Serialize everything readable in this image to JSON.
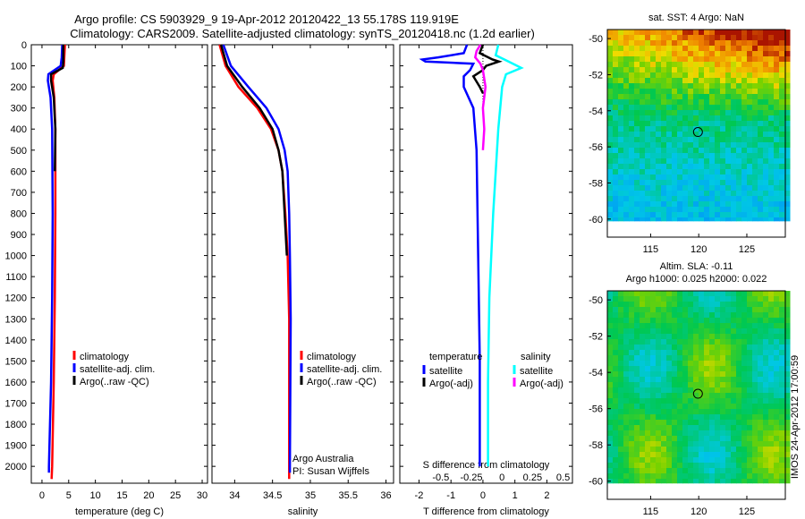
{
  "header": {
    "line1": "Argo profile: CS 5903929_9 19-Apr-2012 20120422_13 55.178S 119.919E",
    "line2": "Climatology: CARS2009. Satellite-adjusted climatology: synTS_20120418.nc (1.2d earlier)"
  },
  "colors": {
    "climatology": "#ff0000",
    "satellite": "#0000ff",
    "argo": "#000000",
    "argo_salinity": "#ff00ff",
    "satellite_salinity": "#00ffff"
  },
  "depth_ticks": [
    "0",
    "100",
    "200",
    "300",
    "400",
    "500",
    "600",
    "700",
    "800",
    "900",
    "1000",
    "1100",
    "1200",
    "1300",
    "1400",
    "1500",
    "1600",
    "1700",
    "1800",
    "1900",
    "2000"
  ],
  "chart_data": [
    {
      "type": "line",
      "id": "temperature",
      "xlabel": "temperature (deg C)",
      "ylabel": "",
      "xlim": [
        -2,
        31
      ],
      "ylim": [
        2080,
        0
      ],
      "xticks": [
        "0",
        "5",
        "10",
        "15",
        "20",
        "25",
        "30"
      ],
      "xtick_values": [
        0,
        5,
        10,
        15,
        20,
        25,
        30
      ],
      "legend": {
        "position": "middle",
        "entries": [
          "climatology",
          "satellite-adj. clim.",
          "Argo(..raw -QC)"
        ]
      },
      "series": [
        {
          "name": "climatology",
          "color": "#ff0000",
          "points": [
            [
              4.3,
              0
            ],
            [
              4.2,
              50
            ],
            [
              4.1,
              100
            ],
            [
              2.2,
              140
            ],
            [
              2.0,
              170
            ],
            [
              2.3,
              250
            ],
            [
              2.5,
              400
            ],
            [
              2.5,
              800
            ],
            [
              2.4,
              1200
            ],
            [
              2.2,
              1600
            ],
            [
              1.9,
              2000
            ],
            [
              1.8,
              2060
            ]
          ]
        },
        {
          "name": "satellite-adj. clim.",
          "color": "#0000ff",
          "points": [
            [
              3.8,
              0
            ],
            [
              3.7,
              60
            ],
            [
              3.5,
              100
            ],
            [
              1.2,
              140
            ],
            [
              1.1,
              170
            ],
            [
              1.6,
              250
            ],
            [
              1.9,
              400
            ],
            [
              2.0,
              800
            ],
            [
              1.9,
              1200
            ],
            [
              1.7,
              1600
            ],
            [
              1.3,
              2000
            ],
            [
              1.3,
              2030
            ]
          ]
        },
        {
          "name": "Argo(..raw -QC)",
          "color": "#000000",
          "points": [
            [
              4.0,
              0
            ],
            [
              4.0,
              80
            ],
            [
              3.9,
              110
            ],
            [
              1.7,
              140
            ],
            [
              1.7,
              170
            ],
            [
              2.2,
              250
            ],
            [
              2.5,
              400
            ],
            [
              2.4,
              600
            ]
          ]
        }
      ]
    },
    {
      "type": "line",
      "id": "salinity",
      "xlabel": "salinity",
      "ylabel": "",
      "xlim": [
        33.7,
        36.1
      ],
      "ylim": [
        2080,
        0
      ],
      "xticks": [
        "34",
        "34.5",
        "35",
        "35.5",
        "36"
      ],
      "xtick_values": [
        34,
        34.5,
        35,
        35.5,
        36
      ],
      "legend": {
        "position": "middle",
        "entries": [
          "climatology",
          "satellite-adj. clim.",
          "Argo(..raw -QC)"
        ]
      },
      "annotation": [
        "Argo Australia",
        "PI: Susan Wijffels"
      ],
      "series": [
        {
          "name": "climatology",
          "color": "#ff0000",
          "points": [
            [
              33.8,
              0
            ],
            [
              33.88,
              100
            ],
            [
              34.05,
              200
            ],
            [
              34.3,
              300
            ],
            [
              34.48,
              400
            ],
            [
              34.58,
              500
            ],
            [
              34.63,
              600
            ],
            [
              34.67,
              800
            ],
            [
              34.7,
              1000
            ],
            [
              34.72,
              1300
            ],
            [
              34.72,
              2000
            ],
            [
              34.72,
              2060
            ]
          ]
        },
        {
          "name": "satellite-adj. clim.",
          "color": "#0000ff",
          "points": [
            [
              33.85,
              0
            ],
            [
              33.95,
              100
            ],
            [
              34.18,
              200
            ],
            [
              34.42,
              300
            ],
            [
              34.58,
              400
            ],
            [
              34.66,
              500
            ],
            [
              34.7,
              600
            ],
            [
              34.72,
              800
            ],
            [
              34.73,
              1000
            ],
            [
              34.74,
              1300
            ],
            [
              34.73,
              2000
            ],
            [
              34.73,
              2030
            ]
          ]
        },
        {
          "name": "Argo(..raw -QC)",
          "color": "#000000",
          "points": [
            [
              33.82,
              0
            ],
            [
              33.9,
              100
            ],
            [
              34.1,
              200
            ],
            [
              34.33,
              300
            ],
            [
              34.5,
              400
            ],
            [
              34.58,
              500
            ],
            [
              34.63,
              600
            ],
            [
              34.66,
              800
            ],
            [
              34.69,
              1000
            ]
          ]
        }
      ]
    },
    {
      "type": "line",
      "id": "difference",
      "xlabel": "T difference from climatology",
      "xlabel_top": "S difference from climatology",
      "xlim": [
        -2.6,
        2.8
      ],
      "ylim": [
        2080,
        0
      ],
      "xticks": [
        "-2",
        "-1",
        "0",
        "1",
        "2"
      ],
      "xtick_values": [
        -2,
        -1,
        0,
        1,
        2
      ],
      "top_ticks": [
        "-0.5",
        "-0.25",
        "0",
        "0.25",
        "0.5"
      ],
      "legend": {
        "position": "middle",
        "titles": [
          "temperature",
          "salinity"
        ],
        "entries": [
          "satellite",
          "Argo(-adj)",
          "satellite",
          "Argo(-adj)"
        ]
      },
      "series": [
        {
          "name": "satellite",
          "quantity": "temperature",
          "color": "#0000ff",
          "points": [
            [
              -0.5,
              0
            ],
            [
              -0.6,
              40
            ],
            [
              -1.4,
              60
            ],
            [
              -1.9,
              70
            ],
            [
              -1.8,
              80
            ],
            [
              -0.3,
              90
            ],
            [
              -0.4,
              120
            ],
            [
              -0.6,
              150
            ],
            [
              -0.6,
              200
            ],
            [
              -0.3,
              300
            ],
            [
              -0.2,
              500
            ],
            [
              -0.15,
              1000
            ],
            [
              -0.1,
              1500
            ],
            [
              -0.1,
              2000
            ]
          ]
        },
        {
          "name": "Argo(-adj)",
          "quantity": "temperature",
          "color": "#000000",
          "points": [
            [
              0.0,
              0
            ],
            [
              -0.05,
              20
            ],
            [
              -0.1,
              40
            ],
            [
              0.3,
              70
            ],
            [
              0.5,
              80
            ],
            [
              0.1,
              100
            ],
            [
              0.0,
              120
            ],
            [
              -0.3,
              150
            ],
            [
              -0.1,
              200
            ],
            [
              0.0,
              230
            ]
          ]
        },
        {
          "name": "satellite",
          "quantity": "salinity",
          "color": "#00ffff",
          "points": [
            [
              0.12,
              0
            ],
            [
              0.1,
              50
            ],
            [
              0.2,
              80
            ],
            [
              0.3,
              110
            ],
            [
              0.18,
              140
            ],
            [
              0.15,
              200
            ],
            [
              0.12,
              400
            ],
            [
              0.08,
              800
            ],
            [
              0.05,
              1200
            ],
            [
              0.04,
              1600
            ],
            [
              0.04,
              2000
            ]
          ]
        },
        {
          "name": "Argo(-adj)",
          "quantity": "salinity",
          "color": "#ff00ff",
          "points": [
            [
              -0.02,
              0
            ],
            [
              -0.05,
              30
            ],
            [
              -0.06,
              60
            ],
            [
              -0.02,
              90
            ],
            [
              0.0,
              120
            ],
            [
              0.02,
              200
            ],
            [
              0.0,
              300
            ],
            [
              0.01,
              400
            ],
            [
              0.0,
              500
            ]
          ]
        }
      ]
    },
    {
      "type": "heatmap",
      "id": "sst-map",
      "title": "sat. SST: 4 Argo: NaN",
      "xlim": [
        110.5,
        129
      ],
      "ylim": [
        -61,
        -49.5
      ],
      "xticks": [
        "115",
        "120",
        "125"
      ],
      "xtick_values": [
        115,
        120,
        125
      ],
      "yticks": [
        "-50",
        "-52",
        "-54",
        "-56",
        "-58",
        "-60"
      ],
      "ytick_values": [
        -50,
        -52,
        -54,
        -56,
        -58,
        -60
      ],
      "marker": {
        "lon": 119.919,
        "lat": -55.178
      }
    },
    {
      "type": "heatmap",
      "id": "sla-map",
      "title": "Altim. SLA: -0.11",
      "subtitle": "Argo h1000: 0.025 h2000: 0.022",
      "xlim": [
        110.5,
        129
      ],
      "ylim": [
        -61,
        -49.5
      ],
      "xticks": [
        "115",
        "120",
        "125"
      ],
      "xtick_values": [
        115,
        120,
        125
      ],
      "yticks": [
        "-50",
        "-52",
        "-54",
        "-56",
        "-58",
        "-60"
      ],
      "ytick_values": [
        -50,
        -52,
        -54,
        -56,
        -58,
        -60
      ],
      "marker": {
        "lon": 119.919,
        "lat": -55.178
      }
    }
  ],
  "side_stamp": "IMOS 24-Apr-2012 17:00:59"
}
